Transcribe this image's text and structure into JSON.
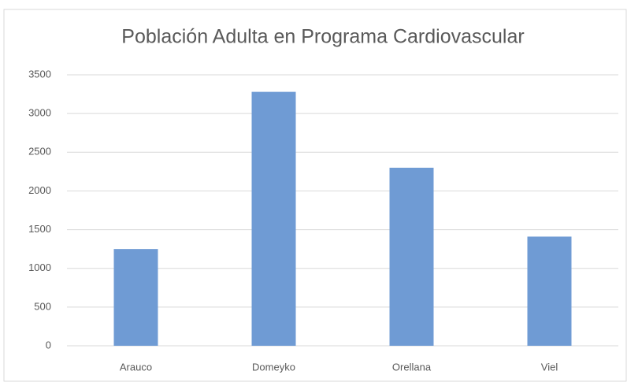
{
  "chart_data": {
    "type": "bar",
    "title": "Población Adulta en Programa Cardiovascular",
    "categories": [
      "Arauco",
      "Domeyko",
      "Orellana",
      "Viel"
    ],
    "values": [
      1250,
      3280,
      2300,
      1410
    ],
    "color": "#6f9bd4",
    "ylim": [
      0,
      3500
    ],
    "yticks": [
      0,
      500,
      1000,
      1500,
      2000,
      2500,
      3000,
      3500
    ],
    "grid": true
  }
}
